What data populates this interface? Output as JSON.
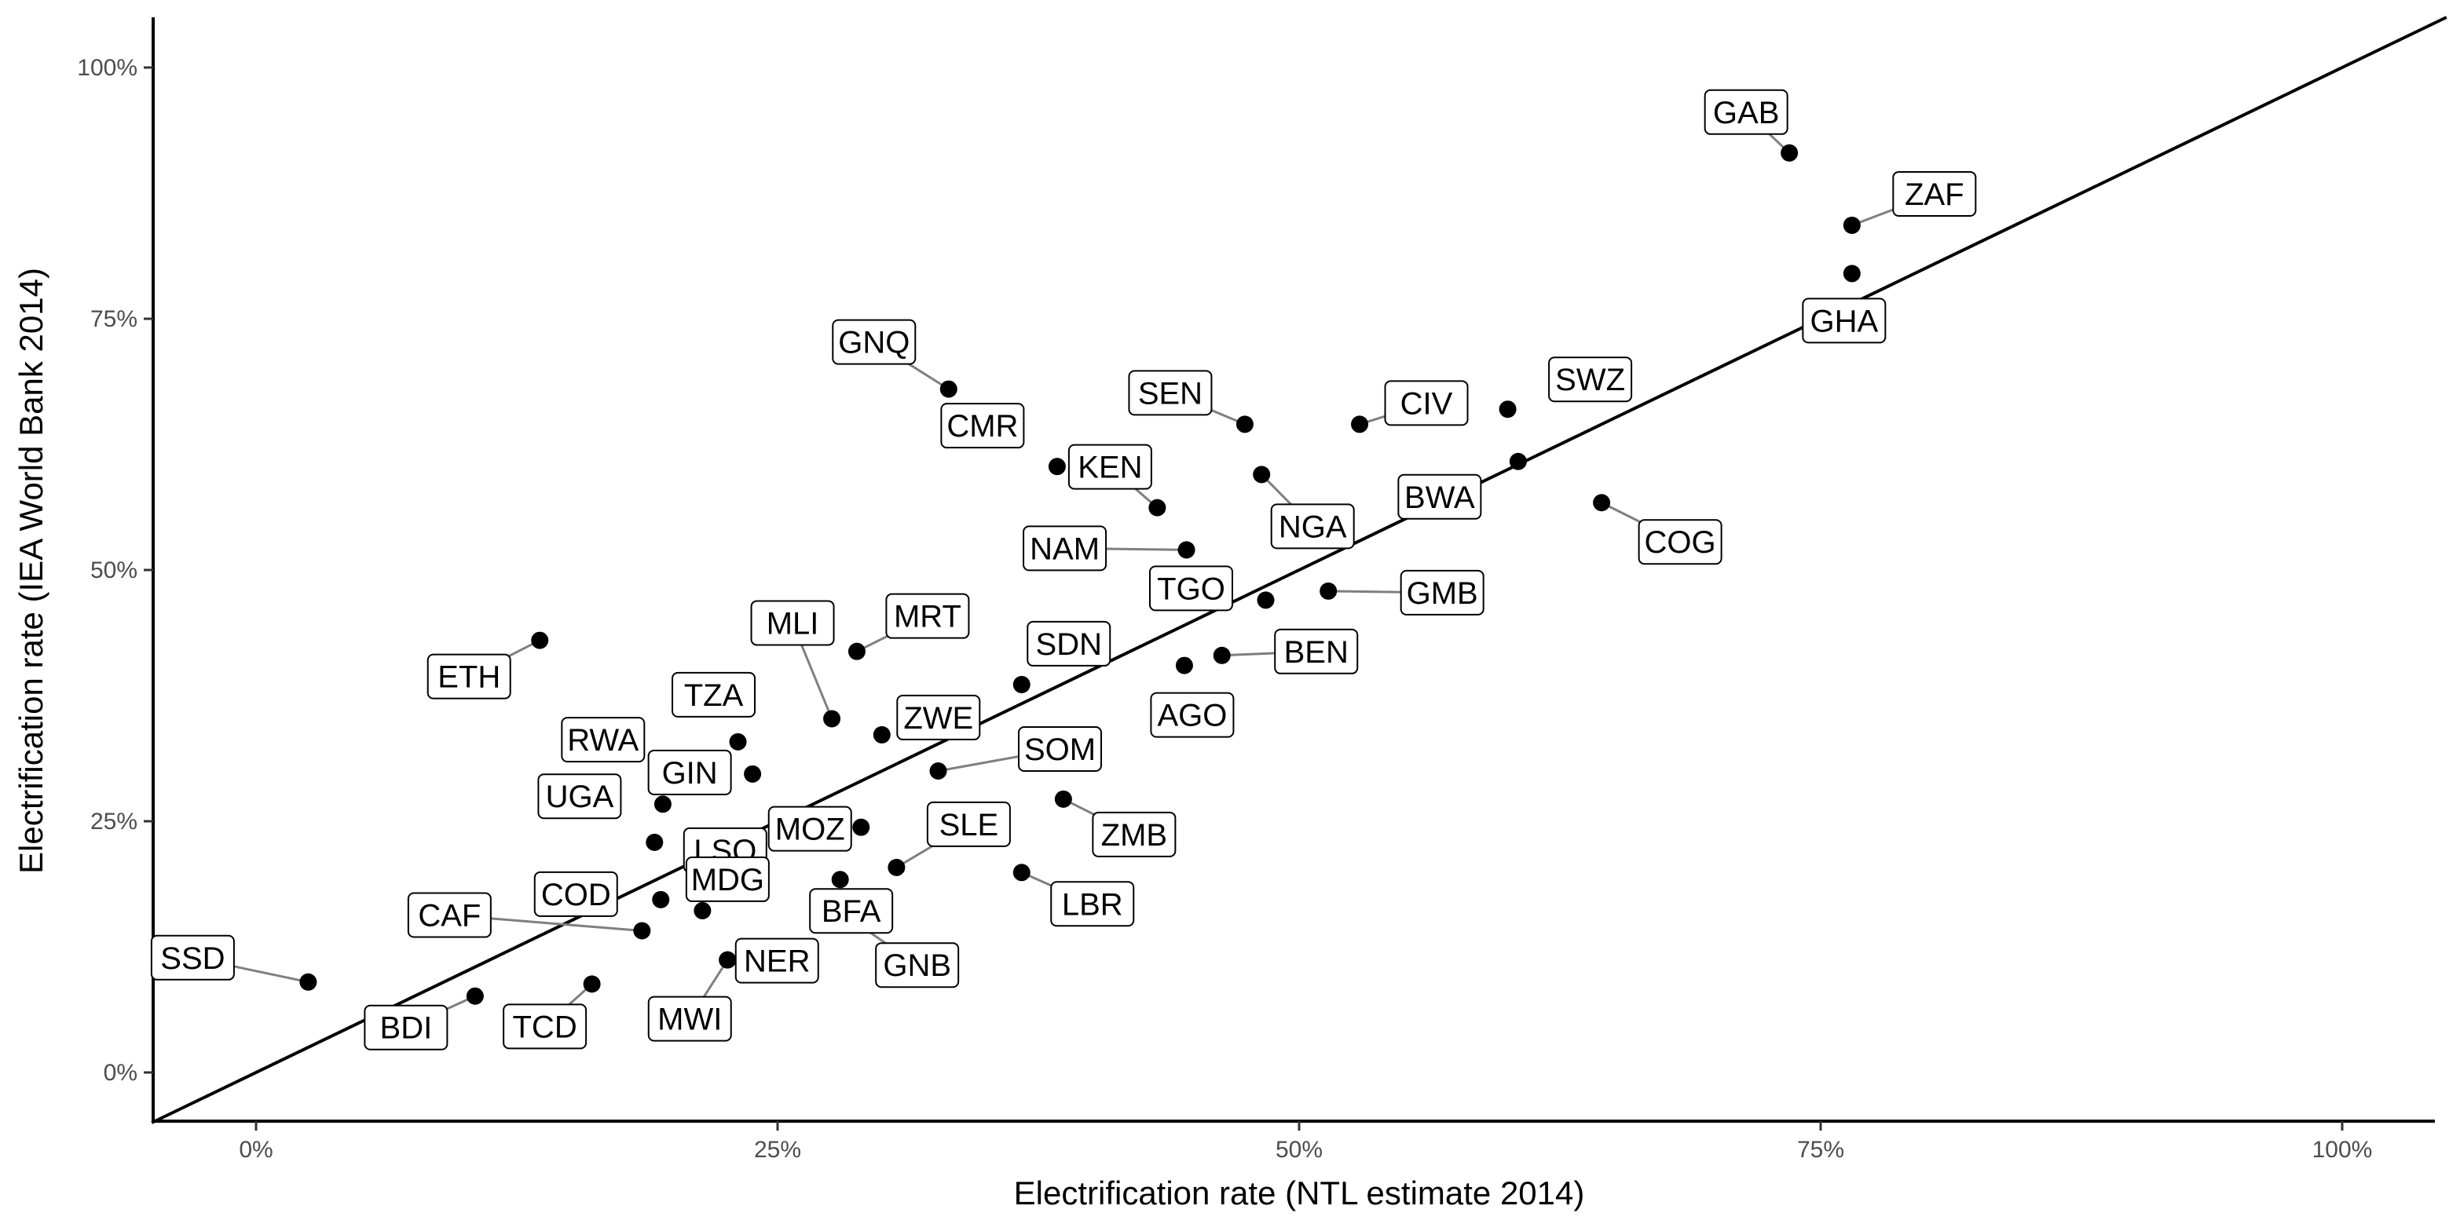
{
  "chart_data": {
    "type": "scatter",
    "title": "",
    "xlabel": "Electrification rate (NTL estimate 2014)",
    "ylabel": "Electrification rate (IEA World Bank 2014)",
    "xlim": [
      -0.05,
      1.05
    ],
    "ylim": [
      -0.05,
      1.05
    ],
    "x_ticks": [
      0,
      0.25,
      0.5,
      0.75,
      1.0
    ],
    "x_tick_labels": [
      "0%",
      "25%",
      "50%",
      "75%",
      "100%"
    ],
    "y_ticks": [
      0,
      0.25,
      0.5,
      0.75,
      1.0
    ],
    "y_tick_labels": [
      "0%",
      "25%",
      "50%",
      "75%",
      "100%"
    ],
    "grid": false,
    "reference_line": "y = x",
    "point_color": "#000000",
    "leader_color": "#7f7f7f",
    "points": [
      {
        "label": "GAB",
        "x": 0.735,
        "y": 0.915
      },
      {
        "label": "ZAF",
        "x": 0.765,
        "y": 0.843
      },
      {
        "label": "GHA",
        "x": 0.765,
        "y": 0.795
      },
      {
        "label": "GNQ",
        "x": 0.332,
        "y": 0.68
      },
      {
        "label": "CMR",
        "x": 0.384,
        "y": 0.603
      },
      {
        "label": "SEN",
        "x": 0.474,
        "y": 0.645
      },
      {
        "label": "CIV",
        "x": 0.529,
        "y": 0.645
      },
      {
        "label": "SWZ",
        "x": 0.6,
        "y": 0.66
      },
      {
        "label": "BWA",
        "x": 0.605,
        "y": 0.608
      },
      {
        "label": "NGA",
        "x": 0.482,
        "y": 0.595
      },
      {
        "label": "KEN",
        "x": 0.432,
        "y": 0.562
      },
      {
        "label": "COG",
        "x": 0.645,
        "y": 0.567
      },
      {
        "label": "NAM",
        "x": 0.446,
        "y": 0.52
      },
      {
        "label": "TGO",
        "x": 0.484,
        "y": 0.47
      },
      {
        "label": "GMB",
        "x": 0.514,
        "y": 0.479
      },
      {
        "label": "BEN",
        "x": 0.463,
        "y": 0.415
      },
      {
        "label": "AGO",
        "x": 0.445,
        "y": 0.405
      },
      {
        "label": "ETH",
        "x": 0.136,
        "y": 0.43
      },
      {
        "label": "MLI",
        "x": 0.276,
        "y": 0.352
      },
      {
        "label": "MRT",
        "x": 0.288,
        "y": 0.419
      },
      {
        "label": "SDN",
        "x": 0.367,
        "y": 0.386
      },
      {
        "label": "ZWE",
        "x": 0.3,
        "y": 0.336
      },
      {
        "label": "TZA",
        "x": 0.231,
        "y": 0.329
      },
      {
        "label": "SOM",
        "x": 0.327,
        "y": 0.3
      },
      {
        "label": "RWA",
        "x": 0.204,
        "y": 0.296
      },
      {
        "label": "GIN",
        "x": 0.238,
        "y": 0.297
      },
      {
        "label": "ZMB",
        "x": 0.387,
        "y": 0.272
      },
      {
        "label": "UGA",
        "x": 0.195,
        "y": 0.267
      },
      {
        "label": "LSO",
        "x": 0.191,
        "y": 0.229
      },
      {
        "label": "MOZ",
        "x": 0.29,
        "y": 0.244
      },
      {
        "label": "SLE",
        "x": 0.307,
        "y": 0.204
      },
      {
        "label": "LBR",
        "x": 0.367,
        "y": 0.199
      },
      {
        "label": "BFA",
        "x": 0.28,
        "y": 0.192
      },
      {
        "label": "COD",
        "x": 0.194,
        "y": 0.172
      },
      {
        "label": "MDG",
        "x": 0.214,
        "y": 0.161
      },
      {
        "label": "CAF",
        "x": 0.185,
        "y": 0.141
      },
      {
        "label": "GNB",
        "x": 0.28,
        "y": 0.16
      },
      {
        "label": "NER",
        "x": 0.226,
        "y": 0.112
      },
      {
        "label": "MWI",
        "x": 0.226,
        "y": 0.112
      },
      {
        "label": "SSD",
        "x": 0.025,
        "y": 0.09
      },
      {
        "label": "TCD",
        "x": 0.161,
        "y": 0.088
      },
      {
        "label": "BDI",
        "x": 0.105,
        "y": 0.076
      }
    ]
  }
}
